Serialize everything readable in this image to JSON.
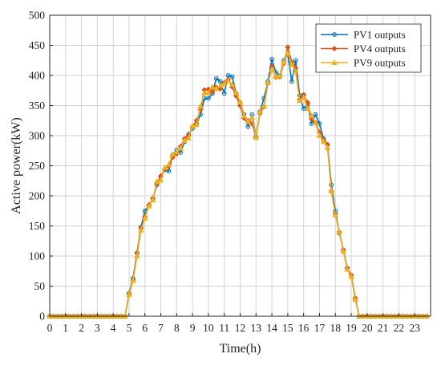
{
  "chart_data": {
    "type": "line",
    "xlabel": "Time(h)",
    "ylabel": "Active power(kW)",
    "xlim": [
      0,
      24
    ],
    "ylim": [
      0,
      500
    ],
    "x_ticks": [
      "0",
      "1",
      "2",
      "3",
      "4",
      "5",
      "6",
      "7",
      "8",
      "9",
      "10",
      "11",
      "12",
      "13",
      "14",
      "15",
      "16",
      "17",
      "18",
      "19",
      "20",
      "21",
      "22",
      "23"
    ],
    "y_ticks": [
      "0",
      "50",
      "100",
      "150",
      "200",
      "250",
      "300",
      "350",
      "400",
      "450",
      "500"
    ],
    "grid": true,
    "legend_position": "top-right",
    "x": [
      0,
      0.25,
      0.5,
      0.75,
      1,
      1.25,
      1.5,
      1.75,
      2,
      2.25,
      2.5,
      2.75,
      3,
      3.25,
      3.5,
      3.75,
      4,
      4.25,
      4.5,
      4.75,
      5,
      5.25,
      5.5,
      5.75,
      6,
      6.25,
      6.5,
      6.75,
      7,
      7.25,
      7.5,
      7.75,
      8,
      8.25,
      8.5,
      8.75,
      9,
      9.25,
      9.5,
      9.75,
      10,
      10.25,
      10.5,
      10.75,
      11,
      11.25,
      11.5,
      11.75,
      12,
      12.25,
      12.5,
      12.75,
      13,
      13.25,
      13.5,
      13.75,
      14,
      14.25,
      14.5,
      14.75,
      15,
      15.25,
      15.5,
      15.75,
      16,
      16.25,
      16.5,
      16.75,
      17,
      17.25,
      17.5,
      17.75,
      18,
      18.25,
      18.5,
      18.75,
      19,
      19.25,
      19.5,
      19.75,
      20,
      20.25,
      20.5,
      20.75,
      21,
      21.25,
      21.5,
      21.75,
      22,
      22.25,
      22.5,
      22.75,
      23,
      23.25,
      23.5,
      23.75
    ],
    "series": [
      {
        "name": "PV1 outputs",
        "color": "#0072BD",
        "marker": "circle",
        "values": [
          0,
          0,
          0,
          0,
          0,
          0,
          0,
          0,
          0,
          0,
          0,
          0,
          0,
          0,
          0,
          0,
          0,
          0,
          0,
          0,
          38,
          63,
          105,
          148,
          175,
          183,
          195,
          218,
          232,
          243,
          241,
          268,
          276,
          272,
          290,
          302,
          312,
          320,
          335,
          362,
          362,
          370,
          395,
          390,
          370,
          400,
          398,
          370,
          355,
          335,
          315,
          335,
          298,
          340,
          362,
          390,
          427,
          405,
          400,
          425,
          435,
          390,
          425,
          367,
          345,
          352,
          320,
          335,
          320,
          295,
          285,
          218,
          175,
          138,
          110,
          80,
          68,
          30,
          0,
          0,
          0,
          0,
          0,
          0,
          0,
          0,
          0,
          0,
          0,
          0,
          0,
          0,
          0,
          0,
          0,
          0
        ]
      },
      {
        "name": "PV4 outputs",
        "color": "#D95319",
        "marker": "diamond",
        "values": [
          0,
          0,
          0,
          0,
          0,
          0,
          0,
          0,
          0,
          0,
          0,
          0,
          0,
          0,
          0,
          0,
          0,
          0,
          0,
          0,
          37,
          60,
          105,
          146,
          165,
          185,
          196,
          220,
          233,
          243,
          250,
          264,
          270,
          282,
          295,
          300,
          315,
          325,
          343,
          376,
          377,
          373,
          380,
          378,
          388,
          393,
          381,
          366,
          350,
          329,
          325,
          320,
          297,
          337,
          348,
          387,
          415,
          397,
          398,
          420,
          447,
          422,
          412,
          360,
          368,
          355,
          328,
          322,
          305,
          293,
          285,
          208,
          170,
          140,
          110,
          80,
          68,
          30,
          0,
          0,
          0,
          0,
          0,
          0,
          0,
          0,
          0,
          0,
          0,
          0,
          0,
          0,
          0,
          0,
          0,
          0
        ]
      },
      {
        "name": "PV9 outputs",
        "color": "#EDB120",
        "marker": "triangle",
        "values": [
          0,
          0,
          0,
          0,
          0,
          0,
          0,
          0,
          0,
          0,
          0,
          0,
          0,
          0,
          0,
          0,
          0,
          0,
          0,
          0,
          36,
          59,
          100,
          143,
          163,
          183,
          193,
          224,
          226,
          247,
          252,
          269,
          273,
          279,
          292,
          296,
          316,
          318,
          349,
          371,
          371,
          381,
          378,
          383,
          386,
          391,
          385,
          371,
          356,
          333,
          323,
          330,
          297,
          340,
          349,
          388,
          410,
          398,
          400,
          422,
          437,
          418,
          407,
          358,
          363,
          345,
          333,
          321,
          300,
          290,
          280,
          208,
          168,
          140,
          108,
          78,
          66,
          28,
          0,
          0,
          0,
          0,
          0,
          0,
          0,
          0,
          0,
          0,
          0,
          0,
          0,
          0,
          0,
          0,
          0,
          0
        ]
      }
    ]
  }
}
